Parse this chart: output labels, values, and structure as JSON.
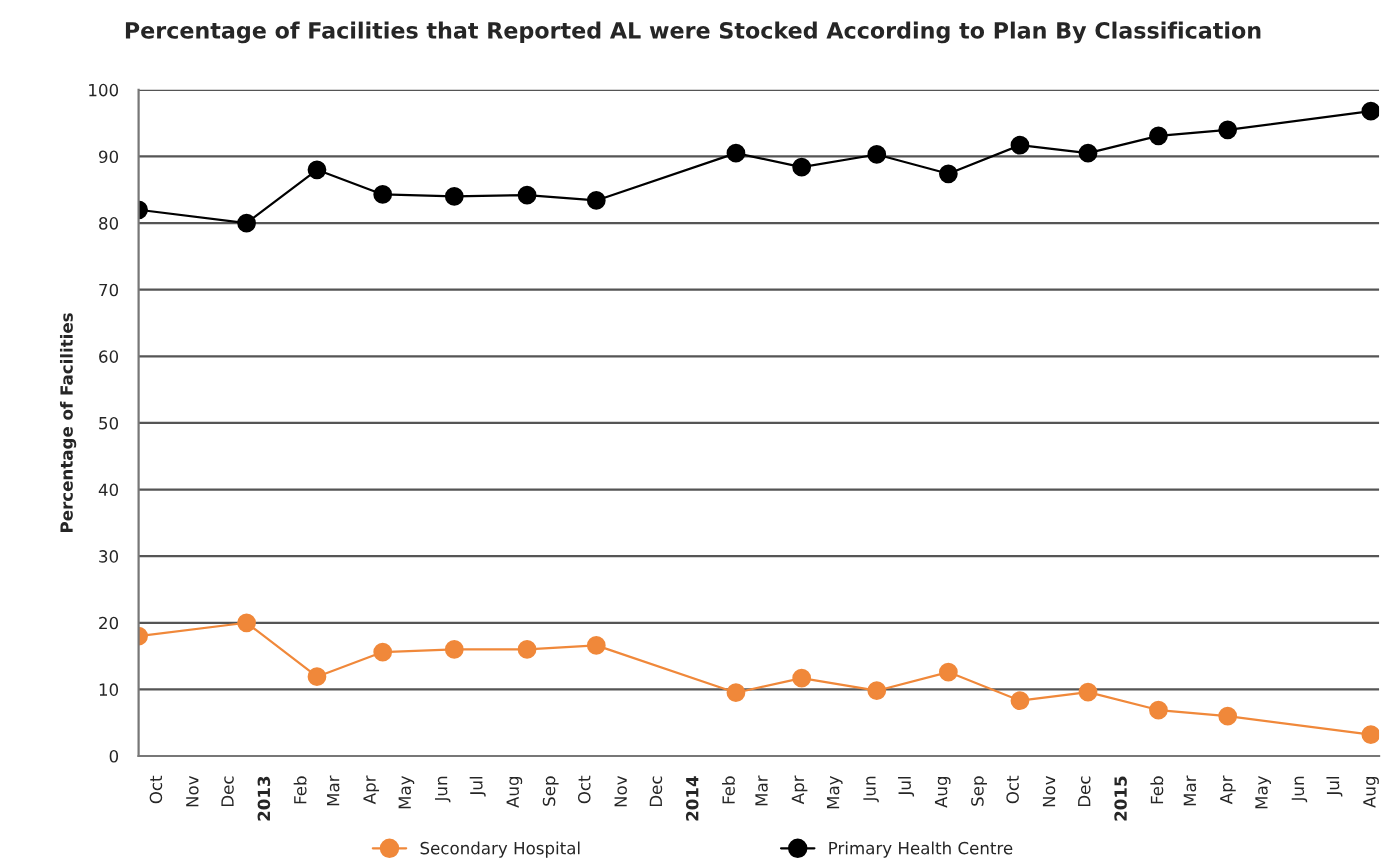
{
  "chart_data": {
    "type": "line",
    "title": "Percentage of Facilities that Reported AL were Stocked According to Plan By Classification",
    "ylabel": "Percentage of Facilities",
    "series": [
      {
        "name": "Secondary Hospital",
        "color": "#f0883a",
        "x": [
          "2012-09-15",
          "2012-12-16",
          "2013-02-14",
          "2013-04-11",
          "2013-06-11",
          "2013-08-12",
          "2013-10-10",
          "2014-02-06",
          "2014-04-03",
          "2014-06-06",
          "2014-08-06",
          "2014-10-06",
          "2014-12-03",
          "2015-02-01",
          "2015-04-01",
          "2015-08-01"
        ],
        "values": [
          18,
          20,
          11.9,
          15.6,
          16,
          16,
          16.6,
          9.5,
          11.7,
          9.8,
          12.6,
          8.3,
          9.6,
          6.9,
          6,
          3.2
        ]
      },
      {
        "name": "Primary Health Centre",
        "color": "#000000",
        "x": [
          "2012-09-15",
          "2012-12-16",
          "2013-02-14",
          "2013-04-11",
          "2013-06-11",
          "2013-08-12",
          "2013-10-10",
          "2014-02-06",
          "2014-04-03",
          "2014-06-06",
          "2014-08-06",
          "2014-10-06",
          "2014-12-03",
          "2015-02-01",
          "2015-04-01",
          "2015-08-01"
        ],
        "values": [
          82,
          80,
          88,
          84.3,
          84,
          84.2,
          83.4,
          90.5,
          88.4,
          90.3,
          87.4,
          91.7,
          90.5,
          93.1,
          94,
          96.8
        ]
      }
    ],
    "xlim": [
      "2012-09-15",
      "2015-08-08"
    ],
    "xticks": [
      {
        "value": "2012-10-01",
        "label": "Oct"
      },
      {
        "value": "2012-11-01",
        "label": "Nov"
      },
      {
        "value": "2012-12-01",
        "label": "Dec"
      },
      {
        "value": "2013-01-01",
        "label": "2013"
      },
      {
        "value": "2013-02-01",
        "label": "Feb"
      },
      {
        "value": "2013-03-01",
        "label": "Mar"
      },
      {
        "value": "2013-04-01",
        "label": "Apr"
      },
      {
        "value": "2013-05-01",
        "label": "May"
      },
      {
        "value": "2013-06-01",
        "label": "Jun"
      },
      {
        "value": "2013-07-01",
        "label": "Jul"
      },
      {
        "value": "2013-08-01",
        "label": "Aug"
      },
      {
        "value": "2013-09-01",
        "label": "Sep"
      },
      {
        "value": "2013-10-01",
        "label": "Oct"
      },
      {
        "value": "2013-11-01",
        "label": "Nov"
      },
      {
        "value": "2013-12-01",
        "label": "Dec"
      },
      {
        "value": "2014-01-01",
        "label": "2014"
      },
      {
        "value": "2014-02-01",
        "label": "Feb"
      },
      {
        "value": "2014-03-01",
        "label": "Mar"
      },
      {
        "value": "2014-04-01",
        "label": "Apr"
      },
      {
        "value": "2014-05-01",
        "label": "May"
      },
      {
        "value": "2014-06-01",
        "label": "Jun"
      },
      {
        "value": "2014-07-01",
        "label": "Jul"
      },
      {
        "value": "2014-08-01",
        "label": "Aug"
      },
      {
        "value": "2014-09-01",
        "label": "Sep"
      },
      {
        "value": "2014-10-01",
        "label": "Oct"
      },
      {
        "value": "2014-11-01",
        "label": "Nov"
      },
      {
        "value": "2014-12-01",
        "label": "Dec"
      },
      {
        "value": "2015-01-01",
        "label": "2015"
      },
      {
        "value": "2015-02-01",
        "label": "Feb"
      },
      {
        "value": "2015-03-01",
        "label": "Mar"
      },
      {
        "value": "2015-04-01",
        "label": "Apr"
      },
      {
        "value": "2015-05-01",
        "label": "May"
      },
      {
        "value": "2015-06-01",
        "label": "Jun"
      },
      {
        "value": "2015-07-01",
        "label": "Jul"
      },
      {
        "value": "2015-08-01",
        "label": "Aug"
      }
    ],
    "ylim": [
      0,
      100
    ],
    "yticks": [
      0,
      10,
      20,
      30,
      40,
      50,
      60,
      70,
      80,
      90,
      100
    ],
    "grid": "y",
    "legend": "bottom",
    "marker": "circle",
    "line_style": "solid"
  }
}
